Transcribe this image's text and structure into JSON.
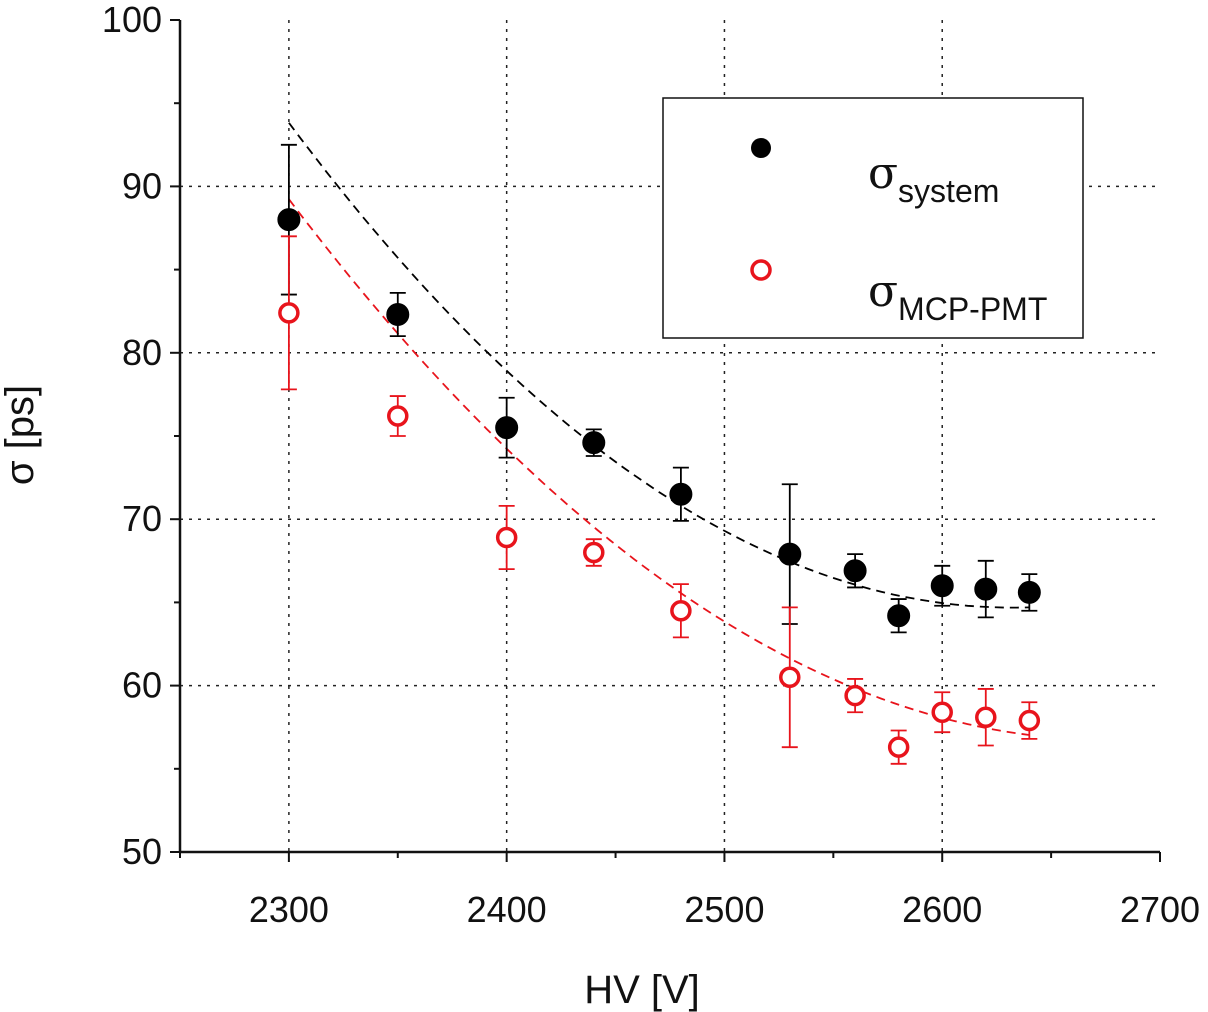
{
  "chart_data": {
    "type": "scatter",
    "title": "",
    "xlabel": "HV [V]",
    "ylabel": "σ [ps]",
    "xlim": [
      2250,
      2700
    ],
    "ylim": [
      50,
      100
    ],
    "x_ticks": [
      2300,
      2400,
      2500,
      2600,
      2700
    ],
    "y_ticks": [
      50,
      60,
      70,
      80,
      90,
      100
    ],
    "x_tick_labels": [
      "2300",
      "2400",
      "2500",
      "2600",
      "2700"
    ],
    "y_tick_labels": [
      "50",
      "60",
      "70",
      "80",
      "90",
      "100"
    ],
    "grid": true,
    "legend_position": "top-right",
    "series": [
      {
        "name": "σ system",
        "legend_main": "σ",
        "legend_sub": "system",
        "marker": "filled-circle",
        "color": "#000000",
        "x": [
          2300,
          2350,
          2400,
          2440,
          2480,
          2530,
          2560,
          2580,
          2600,
          2620,
          2640
        ],
        "y": [
          88.0,
          82.3,
          75.5,
          74.6,
          71.5,
          67.9,
          66.9,
          64.2,
          66.0,
          65.8,
          65.6
        ],
        "err": [
          4.5,
          1.3,
          1.8,
          0.8,
          1.6,
          4.2,
          1.0,
          1.0,
          1.2,
          1.7,
          1.1
        ],
        "fit": {
          "style": "dashed",
          "x": [
            2300,
            2640
          ],
          "a": 0.000264,
          "b": -1.3898,
          "c": 1893.8
        }
      },
      {
        "name": "σ MCP-PMT",
        "legend_main": "σ",
        "legend_sub": "MCP-PMT",
        "marker": "open-circle",
        "color": "#e8141c",
        "x": [
          2300,
          2350,
          2400,
          2440,
          2480,
          2530,
          2560,
          2580,
          2600,
          2620,
          2640
        ],
        "y": [
          82.4,
          76.2,
          68.9,
          68.0,
          64.5,
          60.5,
          59.4,
          56.3,
          58.4,
          58.1,
          57.9
        ],
        "err": [
          4.6,
          1.2,
          1.9,
          0.8,
          1.6,
          4.2,
          1.0,
          1.0,
          1.2,
          1.7,
          1.1
        ],
        "fit": {
          "style": "dashed",
          "x": [
            2300,
            2640
          ],
          "a": 0.00023,
          "b": -1.2309,
          "c": 1703.6
        }
      }
    ]
  }
}
